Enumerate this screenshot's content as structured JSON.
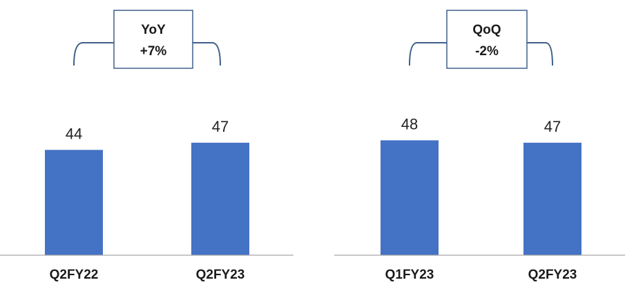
{
  "colors": {
    "bar": "#4472C4",
    "axis": "#a6a6a6",
    "box_border": "#3f5f8a",
    "bracket": "#3f5f8a"
  },
  "chart_data": [
    {
      "type": "bar",
      "categories": [
        "Q2FY22",
        "Q2FY23"
      ],
      "values": [
        44,
        47
      ],
      "data_labels": [
        "44",
        "47"
      ],
      "annotation": {
        "line1": "YoY",
        "line2": "+7%"
      },
      "ylim": [
        0,
        50
      ],
      "grid": false
    },
    {
      "type": "bar",
      "categories": [
        "Q1FY23",
        "Q2FY23"
      ],
      "values": [
        48,
        47
      ],
      "data_labels": [
        "48",
        "47"
      ],
      "annotation": {
        "line1": "QoQ",
        "line2": "-2%"
      },
      "ylim": [
        0,
        50
      ],
      "grid": false
    }
  ]
}
